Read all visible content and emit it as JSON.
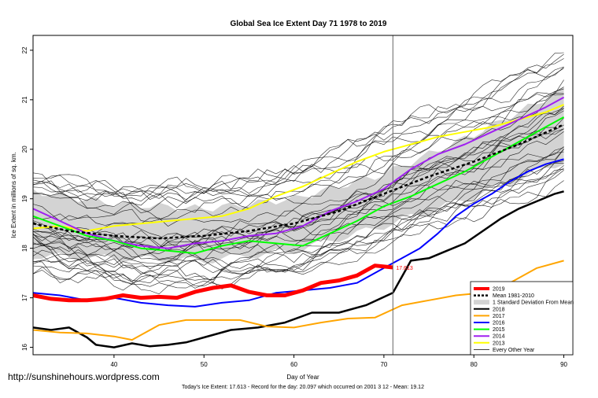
{
  "footer": {
    "url": "http://sunshinehours.wordpress.com",
    "note": "Today's Ice Extent: 17.613  - Record for the day: 20.097 which occurred on 2001 3 12  - Mean: 19.12"
  },
  "chart_data": {
    "type": "line",
    "title": "Global Sea Ice Extent Day 71 1978 to 2019",
    "xlabel": "Day of Year",
    "ylabel": "Ice Extent in millions of sq. km.",
    "xlim": [
      31,
      91
    ],
    "ylim": [
      15.85,
      22.3
    ],
    "xticks": [
      40,
      50,
      60,
      70,
      80,
      90
    ],
    "yticks": [
      16,
      17,
      18,
      19,
      20,
      21,
      22
    ],
    "current_day": 71,
    "end_label": "17.613",
    "legend_position": "bottom-right",
    "grid": false,
    "band_label": "1 Standard Deviation From Mean",
    "std_band": {
      "x": [
        31,
        40,
        50,
        60,
        70,
        80,
        90
      ],
      "lower": [
        17.85,
        17.8,
        17.75,
        17.95,
        18.45,
        19.05,
        19.75
      ],
      "upper": [
        19.15,
        18.9,
        18.8,
        19.0,
        19.5,
        20.3,
        21.2
      ]
    },
    "mean": {
      "name": "Mean 1981-2010",
      "x": [
        31,
        35,
        40,
        45,
        50,
        55,
        60,
        65,
        70,
        75,
        80,
        85,
        90
      ],
      "y": [
        18.5,
        18.35,
        18.25,
        18.2,
        18.25,
        18.35,
        18.5,
        18.75,
        19.1,
        19.45,
        19.75,
        20.1,
        20.5
      ]
    },
    "series": [
      {
        "name": "2019",
        "color": "#ff0000",
        "width": 5,
        "x": [
          31,
          33,
          35,
          37,
          39,
          41,
          43,
          45,
          47,
          49,
          51,
          53,
          55,
          57,
          59,
          61,
          63,
          65,
          67,
          69,
          71
        ],
        "y": [
          17.05,
          16.98,
          16.95,
          16.95,
          16.98,
          17.05,
          17.0,
          17.02,
          17.0,
          17.12,
          17.2,
          17.25,
          17.12,
          17.05,
          17.05,
          17.15,
          17.3,
          17.35,
          17.45,
          17.65,
          17.613
        ]
      },
      {
        "name": "2017",
        "color": "#ffa500",
        "width": 2,
        "x": [
          31,
          34,
          37,
          40,
          42,
          45,
          48,
          51,
          54,
          57,
          60,
          63,
          66,
          69,
          72,
          75,
          78,
          81,
          84,
          87,
          90
        ],
        "y": [
          16.35,
          16.3,
          16.28,
          16.22,
          16.15,
          16.45,
          16.55,
          16.55,
          16.55,
          16.42,
          16.4,
          16.5,
          16.58,
          16.6,
          16.85,
          16.95,
          17.05,
          17.1,
          17.3,
          17.6,
          17.75
        ]
      },
      {
        "name": "2018",
        "color": "#000000",
        "width": 2.5,
        "x": [
          31,
          33,
          35,
          37,
          38,
          40,
          42,
          44,
          46,
          48,
          50,
          53,
          56,
          59,
          62,
          65,
          68,
          71,
          73,
          75,
          77,
          79,
          81,
          83,
          85,
          87,
          89,
          90
        ],
        "y": [
          16.4,
          16.35,
          16.4,
          16.2,
          16.05,
          16.0,
          16.08,
          16.02,
          16.05,
          16.1,
          16.2,
          16.35,
          16.4,
          16.5,
          16.7,
          16.7,
          16.85,
          17.1,
          17.75,
          17.8,
          17.95,
          18.1,
          18.35,
          18.6,
          18.8,
          18.95,
          19.1,
          19.15
        ]
      },
      {
        "name": "2016",
        "color": "#0000ff",
        "width": 2,
        "x": [
          31,
          34,
          37,
          40,
          43,
          46,
          49,
          52,
          55,
          58,
          61,
          64,
          67,
          70,
          72,
          74,
          76,
          78,
          80,
          82,
          84,
          86,
          88,
          90
        ],
        "y": [
          17.1,
          17.05,
          16.95,
          17.0,
          16.9,
          16.85,
          16.82,
          16.9,
          16.95,
          17.1,
          17.15,
          17.2,
          17.3,
          17.6,
          17.8,
          18.0,
          18.3,
          18.65,
          18.9,
          19.1,
          19.35,
          19.55,
          19.7,
          19.8
        ]
      },
      {
        "name": "2015",
        "color": "#00ff00",
        "width": 2,
        "x": [
          31,
          34,
          37,
          40,
          43,
          46,
          49,
          52,
          55,
          58,
          61,
          64,
          67,
          70,
          73,
          76,
          79,
          82,
          85,
          88,
          90
        ],
        "y": [
          18.65,
          18.45,
          18.25,
          18.15,
          18.0,
          17.95,
          17.9,
          18.05,
          18.15,
          18.1,
          18.05,
          18.3,
          18.55,
          18.85,
          19.05,
          19.3,
          19.55,
          19.85,
          20.15,
          20.45,
          20.65
        ]
      },
      {
        "name": "2014",
        "color": "#a020f0",
        "width": 2,
        "x": [
          31,
          34,
          37,
          40,
          43,
          46,
          49,
          52,
          55,
          58,
          61,
          64,
          67,
          70,
          73,
          76,
          79,
          82,
          85,
          88,
          90
        ],
        "y": [
          18.8,
          18.55,
          18.3,
          18.15,
          18.05,
          18.0,
          18.1,
          18.15,
          18.25,
          18.3,
          18.45,
          18.75,
          18.95,
          19.2,
          19.6,
          19.9,
          20.1,
          20.35,
          20.6,
          20.85,
          21.05
        ]
      },
      {
        "name": "2013",
        "color": "#ffff00",
        "width": 2,
        "x": [
          31,
          34,
          37,
          40,
          43,
          46,
          49,
          52,
          55,
          58,
          61,
          64,
          67,
          70,
          73,
          76,
          79,
          82,
          85,
          88,
          90
        ],
        "y": [
          18.4,
          18.45,
          18.35,
          18.45,
          18.5,
          18.55,
          18.6,
          18.65,
          18.8,
          19.05,
          19.25,
          19.5,
          19.75,
          19.95,
          20.1,
          20.25,
          20.35,
          20.45,
          20.6,
          20.75,
          20.9
        ]
      }
    ],
    "other_years": {
      "name": "Every Other Year",
      "color": "#000000",
      "count": 32
    },
    "legend": [
      "2019",
      "Mean 1981-2010",
      "1 Standard Deviation From Mean",
      "2018",
      "2017",
      "2016",
      "2015",
      "2014",
      "2013",
      "Every Other Year"
    ]
  }
}
